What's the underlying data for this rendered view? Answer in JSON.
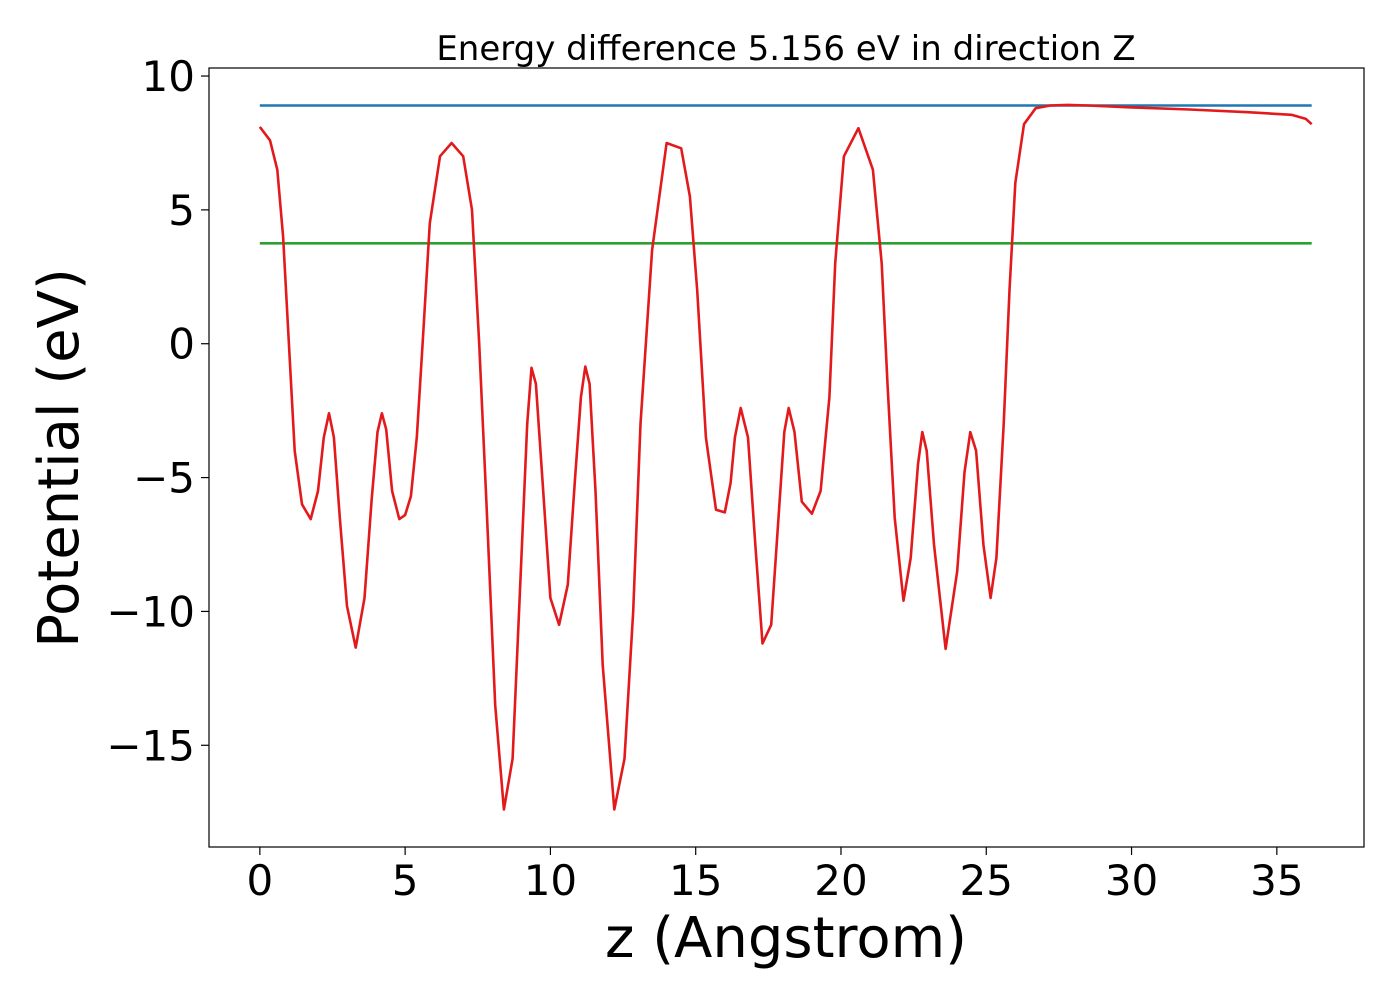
{
  "chart_data": {
    "type": "line",
    "title": "Energy difference 5.156 eV in direction Z",
    "xlabel": "z (Angstrom)",
    "ylabel": "Potential (eV)",
    "xlim": [
      -1.75,
      38.0
    ],
    "ylim": [
      -18.8,
      10.3
    ],
    "xticks": [
      0,
      5,
      10,
      15,
      20,
      25,
      30,
      35
    ],
    "xtick_labels": [
      "0",
      "5",
      "10",
      "15",
      "20",
      "25",
      "30",
      "35"
    ],
    "yticks": [
      10,
      5,
      0,
      -5,
      -10,
      -15
    ],
    "ytick_labels": [
      "10",
      "5",
      "0",
      "−5",
      "−10",
      "−15"
    ],
    "grid": false,
    "legend": "none",
    "series": [
      {
        "role": "vacuum-level",
        "color": "#1f77b4",
        "x": [
          0,
          36.2
        ],
        "y": [
          8.9,
          8.9
        ]
      },
      {
        "role": "fermi-level",
        "color": "#2ca02c",
        "x": [
          0,
          36.2
        ],
        "y": [
          3.75,
          3.75
        ]
      },
      {
        "role": "potential",
        "color": "#e31a1c",
        "x": [
          0,
          0.35,
          0.6,
          0.8,
          1.0,
          1.2,
          1.45,
          1.75,
          2.0,
          2.2,
          2.38,
          2.55,
          2.75,
          3.0,
          3.3,
          3.6,
          3.85,
          4.05,
          4.2,
          4.35,
          4.55,
          4.8,
          5.0,
          5.2,
          5.4,
          5.6,
          5.85,
          6.2,
          6.6,
          7.0,
          7.3,
          7.55,
          7.8,
          8.1,
          8.4,
          8.7,
          9.0,
          9.2,
          9.35,
          9.5,
          9.75,
          10.0,
          10.3,
          10.6,
          10.85,
          11.05,
          11.2,
          11.35,
          11.55,
          11.8,
          12.2,
          12.55,
          12.85,
          13.1,
          13.5,
          14.0,
          14.5,
          14.8,
          15.05,
          15.35,
          15.7,
          16.0,
          16.2,
          16.35,
          16.55,
          16.8,
          17.05,
          17.3,
          17.6,
          17.85,
          18.05,
          18.2,
          18.4,
          18.65,
          19.0,
          19.3,
          19.6,
          19.8,
          20.1,
          20.6,
          21.1,
          21.4,
          21.6,
          21.85,
          22.15,
          22.4,
          22.65,
          22.8,
          22.95,
          23.2,
          23.6,
          24.0,
          24.25,
          24.45,
          24.65,
          24.9,
          25.15,
          25.35,
          25.6,
          25.8,
          26.0,
          26.3,
          26.7,
          27.2,
          27.8,
          28.5,
          30.0,
          32.0,
          34.0,
          35.5,
          36.0,
          36.2
        ],
        "y": [
          8.1,
          7.6,
          6.5,
          4.0,
          0.0,
          -4.0,
          -6.0,
          -6.55,
          -5.5,
          -3.5,
          -2.6,
          -3.5,
          -6.5,
          -9.8,
          -11.35,
          -9.5,
          -5.8,
          -3.3,
          -2.6,
          -3.2,
          -5.5,
          -6.55,
          -6.4,
          -5.7,
          -3.5,
          0.0,
          4.5,
          7.0,
          7.5,
          7.0,
          5.0,
          0.0,
          -6.0,
          -13.5,
          -17.4,
          -15.5,
          -8.0,
          -3.0,
          -0.9,
          -1.5,
          -5.5,
          -9.5,
          -10.5,
          -9.0,
          -5.0,
          -2.0,
          -0.85,
          -1.5,
          -5.5,
          -12.0,
          -17.4,
          -15.5,
          -10.0,
          -3.0,
          3.5,
          7.5,
          7.3,
          5.5,
          2.0,
          -3.5,
          -6.2,
          -6.3,
          -5.2,
          -3.5,
          -2.4,
          -3.5,
          -7.5,
          -11.2,
          -10.5,
          -6.5,
          -3.3,
          -2.4,
          -3.3,
          -5.9,
          -6.35,
          -5.5,
          -2.0,
          3.0,
          7.0,
          8.05,
          6.5,
          3.0,
          -1.5,
          -6.5,
          -9.6,
          -8.0,
          -4.5,
          -3.3,
          -4.0,
          -7.5,
          -11.4,
          -8.5,
          -4.8,
          -3.3,
          -4.0,
          -7.5,
          -9.5,
          -8.0,
          -3.0,
          2.0,
          6.0,
          8.2,
          8.8,
          8.9,
          8.92,
          8.9,
          8.83,
          8.75,
          8.65,
          8.55,
          8.4,
          8.2
        ]
      }
    ]
  }
}
